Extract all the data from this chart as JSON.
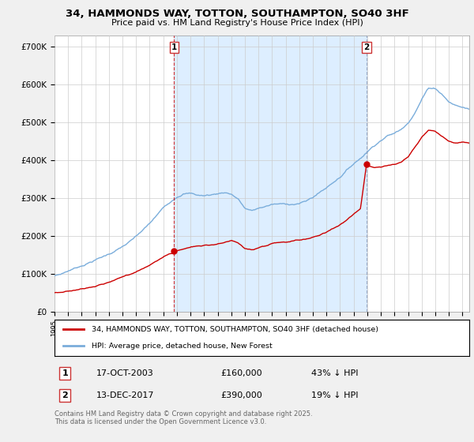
{
  "title_line1": "34, HAMMONDS WAY, TOTTON, SOUTHAMPTON, SO40 3HF",
  "title_line2": "Price paid vs. HM Land Registry's House Price Index (HPI)",
  "ylim": [
    0,
    730000
  ],
  "ytick_vals": [
    0,
    100000,
    200000,
    300000,
    400000,
    500000,
    600000,
    700000
  ],
  "ytick_labels": [
    "£0",
    "£100K",
    "£200K",
    "£300K",
    "£400K",
    "£500K",
    "£600K",
    "£700K"
  ],
  "sale1_date": "17-OCT-2003",
  "sale1_price": 160000,
  "sale1_pct": "43% ↓ HPI",
  "sale1_x": 2003.79,
  "sale2_date": "13-DEC-2017",
  "sale2_price": 390000,
  "sale2_pct": "19% ↓ HPI",
  "sale2_x": 2017.95,
  "legend_label_red": "34, HAMMONDS WAY, TOTTON, SOUTHAMPTON, SO40 3HF (detached house)",
  "legend_label_blue": "HPI: Average price, detached house, New Forest",
  "red_color": "#cc0000",
  "blue_color": "#7aaddb",
  "footnote": "Contains HM Land Registry data © Crown copyright and database right 2025.\nThis data is licensed under the Open Government Licence v3.0.",
  "background_color": "#f0f0f0",
  "plot_background": "#ffffff",
  "grid_color": "#cccccc",
  "shade_color": "#ddeeff",
  "xlim_left": 1995.0,
  "xlim_right": 2025.5
}
